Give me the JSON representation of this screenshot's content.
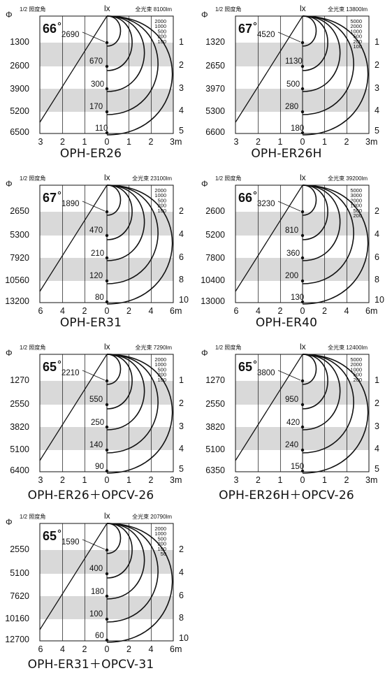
{
  "colors": {
    "band": "#d9d9d9",
    "ink": "#111111"
  },
  "labels": {
    "phi": "Φ",
    "half_angle": "1/2 照度角",
    "lx": "lx",
    "total_flux_prefix": "全光束"
  },
  "panels": [
    {
      "name": "OPH-ER26",
      "title": "OPH-ER26",
      "angle": "66",
      "total_flux": "全光束 8100lm",
      "left_values": [
        "1300",
        "2600",
        "3900",
        "5200",
        "6500"
      ],
      "right_values": [
        "1",
        "2",
        "3",
        "4",
        "5"
      ],
      "x_ticks": [
        "3",
        "2",
        "1",
        "0",
        "1",
        "2",
        "3m"
      ],
      "lux_values": [
        "2690",
        "670",
        "300",
        "170",
        "110"
      ],
      "legend": [
        "2000",
        "1000",
        "500",
        "200",
        "100"
      ]
    },
    {
      "name": "OPH-ER26H",
      "title": "OPH-ER26H",
      "angle": "67",
      "total_flux": "全光束 13800lm",
      "left_values": [
        "1320",
        "2650",
        "3970",
        "5300",
        "6600"
      ],
      "right_values": [
        "1",
        "2",
        "3",
        "4",
        "5"
      ],
      "x_ticks": [
        "3",
        "2",
        "1",
        "0",
        "1",
        "2",
        "3m"
      ],
      "lux_values": [
        "4520",
        "1130",
        "500",
        "280",
        "180"
      ],
      "legend": [
        "5000",
        "2000",
        "1000",
        "500",
        "200",
        "100"
      ]
    },
    {
      "name": "OPH-ER31",
      "title": "OPH-ER31",
      "angle": "67",
      "total_flux": "全光束 23100lm",
      "left_values": [
        "2650",
        "5300",
        "7920",
        "10560",
        "13200"
      ],
      "right_values": [
        "2",
        "4",
        "6",
        "8",
        "10"
      ],
      "x_ticks": [
        "6",
        "4",
        "2",
        "0",
        "2",
        "4",
        "6m"
      ],
      "lux_values": [
        "1890",
        "470",
        "210",
        "120",
        "80"
      ],
      "legend": [
        "2000",
        "1000",
        "500",
        "200",
        "100"
      ]
    },
    {
      "name": "OPH-ER40",
      "title": "OPH-ER40",
      "angle": "66",
      "total_flux": "全光束 39200lm",
      "left_values": [
        "2600",
        "5200",
        "7800",
        "10400",
        "13000"
      ],
      "right_values": [
        "2",
        "4",
        "6",
        "8",
        "10"
      ],
      "x_ticks": [
        "6",
        "4",
        "2",
        "0",
        "2",
        "4",
        "6m"
      ],
      "lux_values": [
        "3230",
        "810",
        "360",
        "200",
        "130"
      ],
      "legend": [
        "5000",
        "3000",
        "2000",
        "1000",
        "500",
        "200"
      ]
    },
    {
      "name": "OPH-ER26+OPCV-26",
      "title": "OPH-ER26＋OPCV-26",
      "angle": "65",
      "total_flux": "全光束 7290lm",
      "left_values": [
        "1270",
        "2550",
        "3820",
        "5100",
        "6400"
      ],
      "right_values": [
        "1",
        "2",
        "3",
        "4",
        "5"
      ],
      "x_ticks": [
        "3",
        "2",
        "1",
        "0",
        "1",
        "2",
        "3m"
      ],
      "lux_values": [
        "2210",
        "550",
        "250",
        "140",
        "90"
      ],
      "legend": [
        "2000",
        "1000",
        "500",
        "200",
        "100"
      ]
    },
    {
      "name": "OPH-ER26H+OPCV-26",
      "title": "OPH-ER26H＋OPCV-26",
      "angle": "65",
      "total_flux": "全光束 12400lm",
      "left_values": [
        "1270",
        "2550",
        "3820",
        "5100",
        "6350"
      ],
      "right_values": [
        "1",
        "2",
        "3",
        "4",
        "5"
      ],
      "x_ticks": [
        "3",
        "2",
        "1",
        "0",
        "1",
        "2",
        "3m"
      ],
      "lux_values": [
        "3800",
        "950",
        "420",
        "240",
        "150"
      ],
      "legend": [
        "5000",
        "2000",
        "1000",
        "500",
        "200"
      ]
    },
    {
      "name": "OPH-ER31+OPCV-31",
      "title": "OPH-ER31＋OPCV-31",
      "angle": "65",
      "total_flux": "全光束 20790lm",
      "left_values": [
        "2550",
        "5100",
        "7620",
        "10160",
        "12700"
      ],
      "right_values": [
        "2",
        "4",
        "6",
        "8",
        "10"
      ],
      "x_ticks": [
        "6",
        "4",
        "2",
        "0",
        "2",
        "4",
        "6m"
      ],
      "lux_values": [
        "1590",
        "400",
        "180",
        "100",
        "60"
      ],
      "legend": [
        "2000",
        "1000",
        "500",
        "200",
        "100",
        "50"
      ]
    }
  ]
}
